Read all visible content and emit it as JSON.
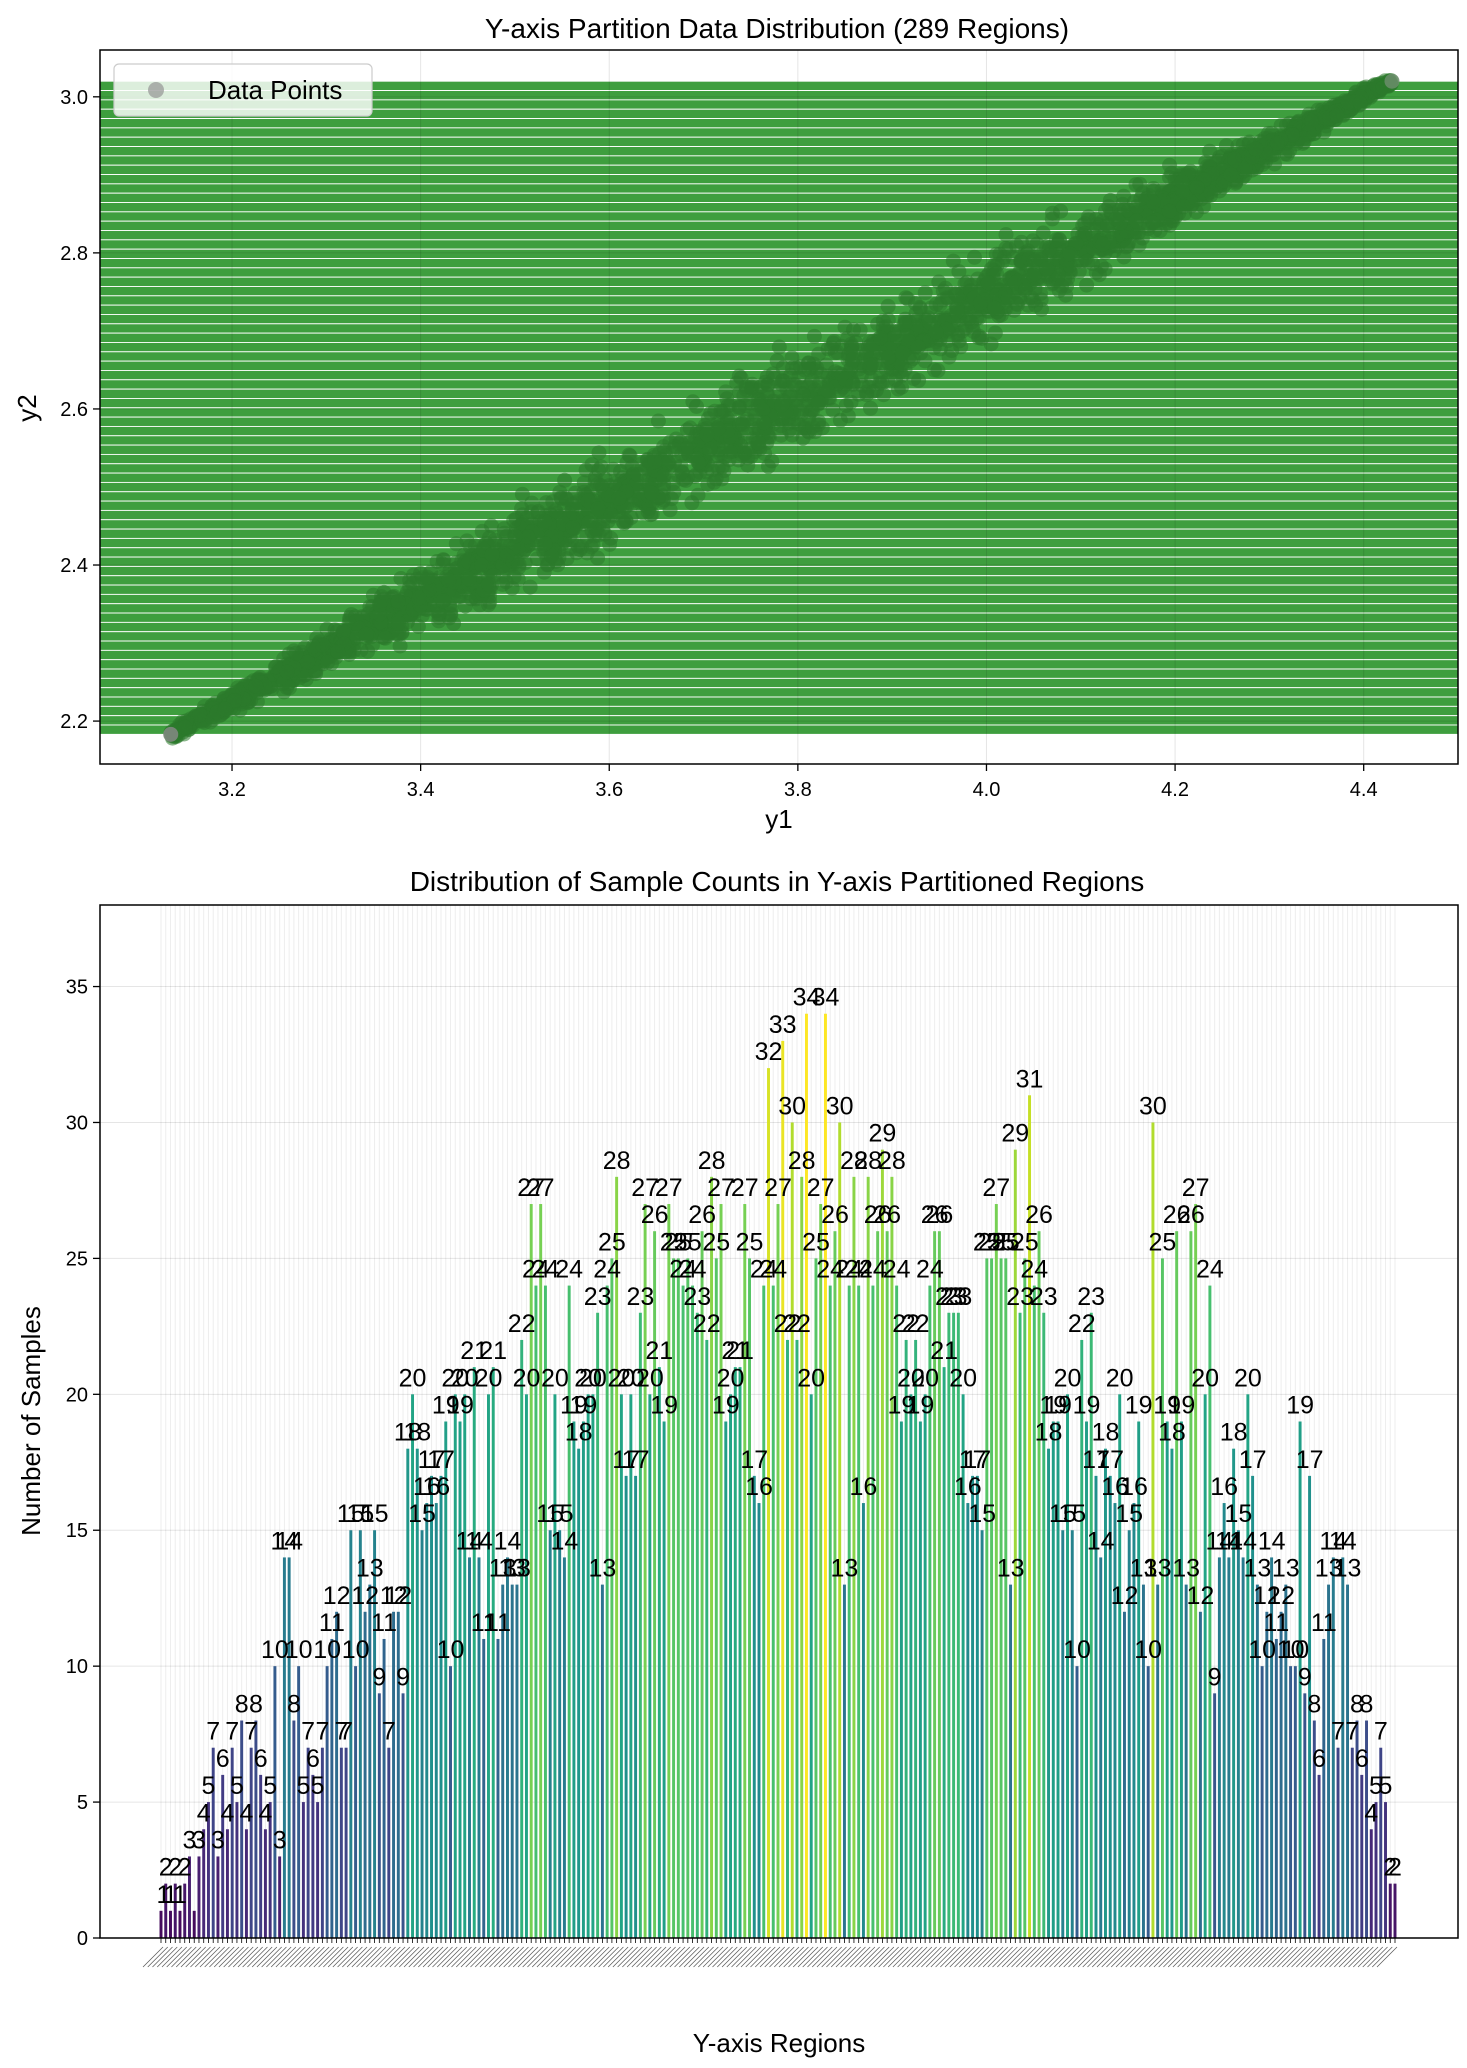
{
  "chart_data": [
    {
      "type": "scatter",
      "title": "Y-axis Partition Data Distribution (289 Regions)",
      "xlabel": "y1",
      "ylabel": "y2",
      "xlim": [
        3.06,
        4.5
      ],
      "ylim": [
        2.145,
        3.06
      ],
      "xticks": [
        "3.2",
        "3.4",
        "3.6",
        "3.8",
        "4.0",
        "4.2",
        "4.4"
      ],
      "yticks": [
        "2.2",
        "2.4",
        "2.6",
        "2.8",
        "3.0"
      ],
      "grid": true,
      "legend": {
        "placement": "top-left",
        "entries": [
          "Data Points"
        ]
      },
      "band_range": [
        2.183,
        3.02
      ],
      "band_count": 70,
      "band_color": "#2e962e",
      "point_color": "#2b7a2b",
      "trend": {
        "x_start": 3.135,
        "y_start": 2.183,
        "x_end": 4.43,
        "y_end": 3.02
      }
    },
    {
      "type": "bar",
      "title": "Distribution of Sample Counts in Y-axis Partitioned Regions",
      "xlabel": "Y-axis Regions",
      "ylabel": "Number of Samples",
      "ylim": [
        0,
        38
      ],
      "yticks": [
        "0",
        "5",
        "10",
        "15",
        "20",
        "25",
        "30",
        "35"
      ],
      "grid": true,
      "colormap": "viridis",
      "values": [
        1,
        2,
        1,
        2,
        1,
        2,
        3,
        1,
        3,
        4,
        5,
        7,
        3,
        6,
        4,
        7,
        5,
        8,
        4,
        7,
        8,
        6,
        4,
        5,
        10,
        3,
        14,
        14,
        8,
        10,
        5,
        7,
        6,
        5,
        7,
        10,
        11,
        12,
        7,
        7,
        15,
        10,
        15,
        12,
        13,
        15,
        9,
        11,
        7,
        12,
        12,
        9,
        18,
        20,
        18,
        15,
        16,
        17,
        16,
        17,
        19,
        10,
        20,
        19,
        20,
        14,
        21,
        14,
        11,
        20,
        21,
        11,
        13,
        14,
        13,
        13,
        22,
        20,
        27,
        24,
        27,
        24,
        15,
        20,
        15,
        14,
        24,
        19,
        18,
        19,
        20,
        20,
        23,
        13,
        24,
        25,
        28,
        20,
        17,
        20,
        17,
        23,
        27,
        20,
        26,
        21,
        19,
        27,
        25,
        25,
        24,
        25,
        24,
        23,
        26,
        22,
        28,
        25,
        27,
        19,
        20,
        21,
        21,
        27,
        25,
        17,
        16,
        24,
        32,
        24,
        27,
        33,
        22,
        30,
        22,
        28,
        34,
        20,
        25,
        27,
        34,
        24,
        26,
        30,
        13,
        24,
        28,
        24,
        16,
        28,
        24,
        26,
        29,
        26,
        28,
        24,
        19,
        22,
        20,
        22,
        19,
        20,
        24,
        26,
        26,
        21,
        23,
        23,
        23,
        20,
        16,
        17,
        17,
        15,
        25,
        25,
        27,
        25,
        25,
        13,
        29,
        23,
        25,
        31,
        24,
        26,
        23,
        18,
        19,
        19,
        15,
        20,
        15,
        10,
        22,
        19,
        23,
        17,
        14,
        18,
        17,
        16,
        20,
        12,
        15,
        16,
        19,
        13,
        10,
        30,
        13,
        25,
        19,
        18,
        26,
        19,
        13,
        26,
        27,
        12,
        20,
        24,
        9,
        14,
        16,
        14,
        18,
        15,
        14,
        20,
        17,
        13,
        10,
        12,
        14,
        11,
        12,
        13,
        10,
        10,
        19,
        9,
        17,
        8,
        6,
        11,
        13,
        14,
        7,
        14,
        13,
        7,
        8,
        6,
        8,
        4,
        5,
        7,
        5,
        2,
        2
      ],
      "value_labels": [
        {
          "v": 1,
          "i": 0.5
        },
        {
          "v": 2,
          "i": 1
        },
        {
          "v": 1,
          "i": 2
        },
        {
          "v": 2,
          "i": 3
        },
        {
          "v": 1,
          "i": 4
        },
        {
          "v": 2,
          "i": 5
        },
        {
          "v": 3,
          "i": 6
        },
        {
          "v": 3,
          "i": 8
        },
        {
          "v": 4,
          "i": 9
        },
        {
          "v": 5,
          "i": 10
        },
        {
          "v": 7,
          "i": 11
        },
        {
          "v": 3,
          "i": 12
        },
        {
          "v": 6,
          "i": 13
        },
        {
          "v": 4,
          "i": 14
        },
        {
          "v": 7,
          "i": 15
        },
        {
          "v": 5,
          "i": 16
        },
        {
          "v": 8,
          "i": 17
        },
        {
          "v": 4,
          "i": 18
        },
        {
          "v": 7,
          "i": 19
        },
        {
          "v": 8,
          "i": 20
        },
        {
          "v": 6,
          "i": 21
        },
        {
          "v": 4,
          "i": 22
        },
        {
          "v": 5,
          "i": 23
        },
        {
          "v": 10,
          "i": 24
        },
        {
          "v": 3,
          "i": 25
        },
        {
          "v": 14,
          "i": 26
        },
        {
          "v": 14,
          "i": 27
        },
        {
          "v": 8,
          "i": 28
        },
        {
          "v": 10,
          "i": 29
        },
        {
          "v": 5,
          "i": 30
        },
        {
          "v": 7,
          "i": 31
        },
        {
          "v": 6,
          "i": 32
        },
        {
          "v": 5,
          "i": 33
        },
        {
          "v": 7,
          "i": 34
        },
        {
          "v": 10,
          "i": 35
        },
        {
          "v": 11,
          "i": 36
        },
        {
          "v": 12,
          "i": 37
        },
        {
          "v": 7,
          "i": 38
        },
        {
          "v": 7,
          "i": 39
        },
        {
          "v": 15,
          "i": 40
        },
        {
          "v": 10,
          "i": 41
        },
        {
          "v": 15,
          "i": 42
        },
        {
          "v": 12,
          "i": 43
        },
        {
          "v": 13,
          "i": 44
        },
        {
          "v": 15,
          "i": 45
        },
        {
          "v": 9,
          "i": 46
        },
        {
          "v": 11,
          "i": 47
        },
        {
          "v": 7,
          "i": 48
        },
        {
          "v": 12,
          "i": 49
        },
        {
          "v": 12,
          "i": 50
        },
        {
          "v": 9,
          "i": 51
        },
        {
          "v": 18,
          "i": 52
        },
        {
          "v": 20,
          "i": 53
        },
        {
          "v": 18,
          "i": 54
        },
        {
          "v": 15,
          "i": 55
        },
        {
          "v": 16,
          "i": 56
        },
        {
          "v": 17,
          "i": 57
        },
        {
          "v": 16,
          "i": 58
        },
        {
          "v": 17,
          "i": 59
        },
        {
          "v": 19,
          "i": 60
        },
        {
          "v": 10,
          "i": 61
        },
        {
          "v": 20,
          "i": 62
        },
        {
          "v": 19,
          "i": 63
        },
        {
          "v": 20,
          "i": 64
        },
        {
          "v": 14,
          "i": 65
        },
        {
          "v": 21,
          "i": 66
        },
        {
          "v": 14,
          "i": 67
        },
        {
          "v": 11,
          "i": 68
        },
        {
          "v": 20,
          "i": 69
        },
        {
          "v": 21,
          "i": 70
        },
        {
          "v": 11,
          "i": 71
        },
        {
          "v": 13,
          "i": 72
        },
        {
          "v": 14,
          "i": 73
        },
        {
          "v": 13,
          "i": 74
        },
        {
          "v": 13,
          "i": 75
        },
        {
          "v": 22,
          "i": 76
        },
        {
          "v": 20,
          "i": 77
        },
        {
          "v": 27,
          "i": 78
        },
        {
          "v": 24,
          "i": 79
        },
        {
          "v": 27,
          "i": 80
        },
        {
          "v": 24,
          "i": 81
        },
        {
          "v": 15,
          "i": 82
        },
        {
          "v": 20,
          "i": 83
        },
        {
          "v": 15,
          "i": 84
        },
        {
          "v": 14,
          "i": 85
        },
        {
          "v": 24,
          "i": 86
        },
        {
          "v": 19,
          "i": 87
        },
        {
          "v": 18,
          "i": 88
        },
        {
          "v": 19,
          "i": 89
        },
        {
          "v": 20,
          "i": 90
        },
        {
          "v": 20,
          "i": 91
        },
        {
          "v": 23,
          "i": 92
        },
        {
          "v": 13,
          "i": 93
        },
        {
          "v": 24,
          "i": 94
        },
        {
          "v": 25,
          "i": 95
        },
        {
          "v": 28,
          "i": 96
        },
        {
          "v": 20,
          "i": 97
        },
        {
          "v": 17,
          "i": 98
        },
        {
          "v": 20,
          "i": 99
        },
        {
          "v": 17,
          "i": 100
        },
        {
          "v": 23,
          "i": 101
        },
        {
          "v": 27,
          "i": 102
        },
        {
          "v": 20,
          "i": 103
        },
        {
          "v": 26,
          "i": 104
        },
        {
          "v": 21,
          "i": 105
        },
        {
          "v": 19,
          "i": 106
        },
        {
          "v": 27,
          "i": 107
        },
        {
          "v": 25,
          "i": 108
        },
        {
          "v": 25,
          "i": 109
        },
        {
          "v": 24,
          "i": 110
        },
        {
          "v": 25,
          "i": 111
        },
        {
          "v": 24,
          "i": 112
        },
        {
          "v": 23,
          "i": 113
        },
        {
          "v": 26,
          "i": 114
        },
        {
          "v": 22,
          "i": 115
        },
        {
          "v": 28,
          "i": 116
        },
        {
          "v": 25,
          "i": 117
        },
        {
          "v": 27,
          "i": 118
        },
        {
          "v": 19,
          "i": 119
        },
        {
          "v": 20,
          "i": 120
        },
        {
          "v": 21,
          "i": 121
        },
        {
          "v": 21,
          "i": 122
        },
        {
          "v": 27,
          "i": 123
        },
        {
          "v": 25,
          "i": 124
        },
        {
          "v": 17,
          "i": 125
        },
        {
          "v": 16,
          "i": 126
        },
        {
          "v": 24,
          "i": 127
        },
        {
          "v": 32,
          "i": 128
        },
        {
          "v": 24,
          "i": 129
        },
        {
          "v": 27,
          "i": 130
        },
        {
          "v": 33,
          "i": 131
        },
        {
          "v": 22,
          "i": 132
        },
        {
          "v": 30,
          "i": 133
        },
        {
          "v": 22,
          "i": 134
        },
        {
          "v": 28,
          "i": 135
        },
        {
          "v": 34,
          "i": 136
        },
        {
          "v": 20,
          "i": 137
        },
        {
          "v": 25,
          "i": 138
        },
        {
          "v": 27,
          "i": 139
        },
        {
          "v": 34,
          "i": 140
        },
        {
          "v": 24,
          "i": 141
        },
        {
          "v": 26,
          "i": 142
        },
        {
          "v": 30,
          "i": 143
        },
        {
          "v": 13,
          "i": 144
        },
        {
          "v": 24,
          "i": 145
        },
        {
          "v": 28,
          "i": 146
        },
        {
          "v": 24,
          "i": 147
        },
        {
          "v": 16,
          "i": 148
        },
        {
          "v": 28,
          "i": 149
        },
        {
          "v": 24,
          "i": 150
        },
        {
          "v": 26,
          "i": 151
        },
        {
          "v": 29,
          "i": 152
        },
        {
          "v": 26,
          "i": 153
        },
        {
          "v": 28,
          "i": 154
        },
        {
          "v": 24,
          "i": 155
        },
        {
          "v": 19,
          "i": 156
        },
        {
          "v": 22,
          "i": 157
        },
        {
          "v": 20,
          "i": 158
        },
        {
          "v": 22,
          "i": 159
        },
        {
          "v": 19,
          "i": 160
        },
        {
          "v": 20,
          "i": 161
        },
        {
          "v": 24,
          "i": 162
        },
        {
          "v": 26,
          "i": 163
        },
        {
          "v": 26,
          "i": 164
        },
        {
          "v": 21,
          "i": 165
        },
        {
          "v": 23,
          "i": 166
        },
        {
          "v": 23,
          "i": 167
        },
        {
          "v": 23,
          "i": 168
        },
        {
          "v": 20,
          "i": 169
        },
        {
          "v": 16,
          "i": 170
        },
        {
          "v": 17,
          "i": 171
        },
        {
          "v": 17,
          "i": 172
        },
        {
          "v": 15,
          "i": 173
        },
        {
          "v": 25,
          "i": 174
        },
        {
          "v": 25,
          "i": 175
        },
        {
          "v": 27,
          "i": 176
        },
        {
          "v": 25,
          "i": 177
        },
        {
          "v": 25,
          "i": 178
        },
        {
          "v": 13,
          "i": 179
        },
        {
          "v": 29,
          "i": 180
        },
        {
          "v": 23,
          "i": 181
        },
        {
          "v": 25,
          "i": 182
        },
        {
          "v": 31,
          "i": 183
        },
        {
          "v": 24,
          "i": 184
        },
        {
          "v": 26,
          "i": 185
        },
        {
          "v": 23,
          "i": 186
        },
        {
          "v": 18,
          "i": 187
        },
        {
          "v": 19,
          "i": 188
        },
        {
          "v": 19,
          "i": 189
        },
        {
          "v": 15,
          "i": 190
        },
        {
          "v": 20,
          "i": 191
        },
        {
          "v": 15,
          "i": 192
        },
        {
          "v": 10,
          "i": 193
        },
        {
          "v": 22,
          "i": 194
        },
        {
          "v": 19,
          "i": 195
        },
        {
          "v": 23,
          "i": 196
        },
        {
          "v": 17,
          "i": 197
        },
        {
          "v": 14,
          "i": 198
        },
        {
          "v": 18,
          "i": 199
        },
        {
          "v": 17,
          "i": 200
        },
        {
          "v": 16,
          "i": 201
        },
        {
          "v": 20,
          "i": 202
        },
        {
          "v": 12,
          "i": 203
        },
        {
          "v": 15,
          "i": 204
        },
        {
          "v": 16,
          "i": 205
        },
        {
          "v": 19,
          "i": 206
        },
        {
          "v": 13,
          "i": 207
        },
        {
          "v": 10,
          "i": 208
        },
        {
          "v": 30,
          "i": 209
        },
        {
          "v": 13,
          "i": 210
        },
        {
          "v": 25,
          "i": 211
        },
        {
          "v": 19,
          "i": 212
        },
        {
          "v": 18,
          "i": 213
        },
        {
          "v": 26,
          "i": 214
        },
        {
          "v": 19,
          "i": 215
        },
        {
          "v": 13,
          "i": 216
        },
        {
          "v": 26,
          "i": 217
        },
        {
          "v": 27,
          "i": 218
        },
        {
          "v": 12,
          "i": 219
        },
        {
          "v": 20,
          "i": 220
        },
        {
          "v": 24,
          "i": 221
        },
        {
          "v": 9,
          "i": 222
        },
        {
          "v": 14,
          "i": 223
        },
        {
          "v": 16,
          "i": 224
        },
        {
          "v": 14,
          "i": 225
        },
        {
          "v": 18,
          "i": 226
        },
        {
          "v": 15,
          "i": 227
        },
        {
          "v": 14,
          "i": 228
        },
        {
          "v": 20,
          "i": 229
        },
        {
          "v": 17,
          "i": 230
        },
        {
          "v": 13,
          "i": 231
        },
        {
          "v": 10,
          "i": 232
        },
        {
          "v": 12,
          "i": 233
        },
        {
          "v": 14,
          "i": 234
        },
        {
          "v": 11,
          "i": 235
        },
        {
          "v": 12,
          "i": 236
        },
        {
          "v": 13,
          "i": 237
        },
        {
          "v": 10,
          "i": 238
        },
        {
          "v": 10,
          "i": 239
        },
        {
          "v": 19,
          "i": 240
        },
        {
          "v": 9,
          "i": 241
        },
        {
          "v": 17,
          "i": 242
        },
        {
          "v": 8,
          "i": 243
        },
        {
          "v": 6,
          "i": 244
        },
        {
          "v": 11,
          "i": 245
        },
        {
          "v": 13,
          "i": 246
        },
        {
          "v": 14,
          "i": 247
        },
        {
          "v": 7,
          "i": 248
        },
        {
          "v": 14,
          "i": 249
        },
        {
          "v": 13,
          "i": 250
        },
        {
          "v": 7,
          "i": 251
        },
        {
          "v": 8,
          "i": 252
        },
        {
          "v": 6,
          "i": 253
        },
        {
          "v": 8,
          "i": 254
        },
        {
          "v": 4,
          "i": 255
        },
        {
          "v": 5,
          "i": 256
        },
        {
          "v": 7,
          "i": 257
        },
        {
          "v": 5,
          "i": 258
        },
        {
          "v": 2,
          "i": 259
        },
        {
          "v": 2,
          "i": 260
        }
      ]
    }
  ]
}
